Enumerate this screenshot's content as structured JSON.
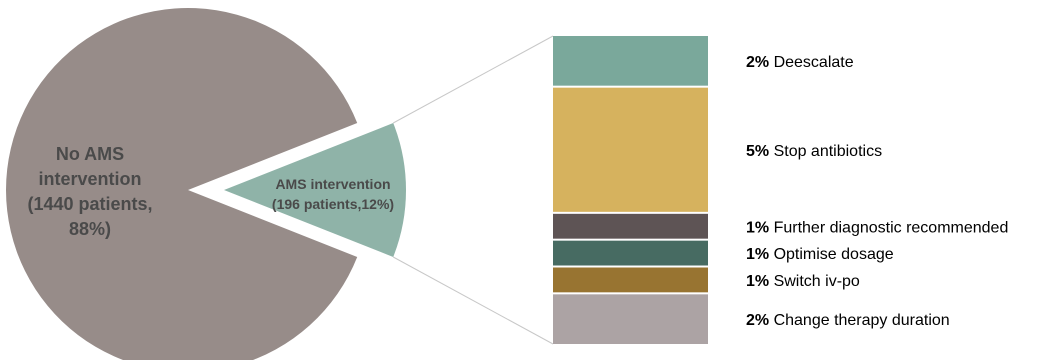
{
  "chart_data": {
    "type": "pie-of-bar",
    "pie": {
      "slices": [
        {
          "label_lines": [
            "No AMS",
            "intervention",
            "(1440 patients,",
            "88%)"
          ],
          "patients": 1440,
          "percent": 88,
          "color": "#978c89"
        },
        {
          "label_lines": [
            "AMS intervention",
            "(196 patients,12%)"
          ],
          "patients": 196,
          "percent": 12,
          "color": "#8fb3a8",
          "exploded": true
        }
      ]
    },
    "bar": {
      "segments": [
        {
          "percent": 2,
          "pct_label": "2%",
          "label": "Deescalate",
          "color": "#7aa89b"
        },
        {
          "percent": 5,
          "pct_label": "5%",
          "label": "Stop antibiotics",
          "color": "#d6b25e"
        },
        {
          "percent": 1,
          "pct_label": "1%",
          "label": "Further diagnostic recommended",
          "color": "#5e5455"
        },
        {
          "percent": 1,
          "pct_label": "1%",
          "label": "Optimise dosage",
          "color": "#476b62"
        },
        {
          "percent": 1,
          "pct_label": "1%",
          "label": "Switch iv-po",
          "color": "#987431"
        },
        {
          "percent": 2,
          "pct_label": "2%",
          "label": "Change therapy duration",
          "color": "#aca3a4"
        }
      ]
    },
    "connector_color": "#c8c8c8"
  }
}
